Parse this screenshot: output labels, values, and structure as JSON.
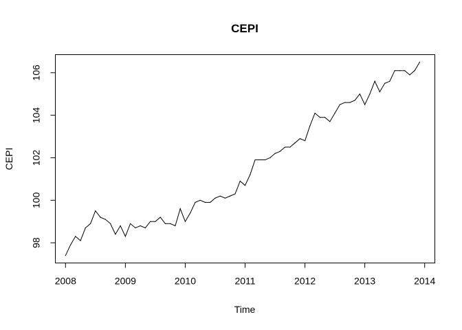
{
  "chart_data": {
    "type": "line",
    "title": "CEPI",
    "xlabel": "Time",
    "ylabel": "CEPI",
    "xlim": [
      2007.83,
      2014.17
    ],
    "ylim": [
      97.05,
      106.85
    ],
    "x_ticks": [
      2008,
      2009,
      2010,
      2011,
      2012,
      2013,
      2014
    ],
    "x_tick_labels": [
      "2008",
      "2009",
      "2010",
      "2011",
      "2012",
      "2013",
      "2014"
    ],
    "y_ticks": [
      98,
      100,
      102,
      104,
      106
    ],
    "y_tick_labels": [
      "98",
      "100",
      "102",
      "104",
      "106"
    ],
    "grid": false,
    "x_start": 2008.0,
    "x_frequency": 12,
    "series": [
      {
        "values": [
          97.4,
          97.9,
          98.3,
          98.1,
          98.7,
          98.9,
          99.5,
          99.2,
          99.1,
          98.9,
          98.4,
          98.8,
          98.3,
          98.9,
          98.7,
          98.8,
          98.7,
          99.0,
          99.0,
          99.2,
          98.9,
          98.9,
          98.8,
          99.6,
          99.0,
          99.4,
          99.9,
          100.0,
          99.9,
          99.9,
          100.1,
          100.2,
          100.1,
          100.2,
          100.3,
          100.9,
          100.7,
          101.2,
          101.9,
          101.9,
          101.9,
          102.0,
          102.2,
          102.3,
          102.5,
          102.5,
          102.7,
          102.9,
          102.8,
          103.5,
          104.1,
          103.9,
          103.9,
          103.7,
          104.1,
          104.5,
          104.6,
          104.6,
          104.7,
          105.0,
          104.5,
          105.0,
          105.6,
          105.1,
          105.5,
          105.6,
          106.1,
          106.1,
          106.1,
          105.9,
          106.1,
          106.5
        ]
      }
    ]
  }
}
